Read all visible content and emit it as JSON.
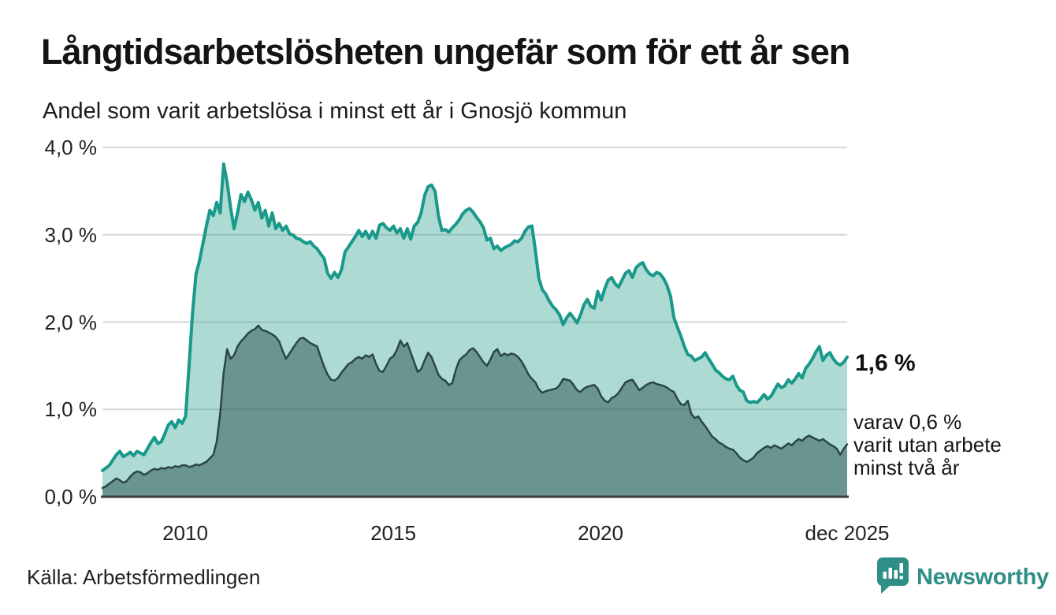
{
  "header": {
    "title": "Långtidsarbetslösheten ungefär som för ett år sen",
    "subtitle": "Andel som varit arbetslösa i minst ett år i Gnosjö kommun"
  },
  "chart_data": {
    "type": "area",
    "title": "Långtidsarbetslösheten ungefär som för ett år sen",
    "subtitle": "Andel som varit arbetslösa i minst ett år i Gnosjö kommun",
    "unit": "%",
    "x_description": "monthly values, Jan 2008 - Dec 2025",
    "ylim": [
      0,
      4.0
    ],
    "grid": "horizontal",
    "y_ticks": [
      "4,0 %",
      "3,0 %",
      "2,0 %",
      "1,0 %",
      "0,0 %"
    ],
    "x_ticks": [
      {
        "label": "2010"
      },
      {
        "label": "2015"
      },
      {
        "label": "2020"
      },
      {
        "label": "dec 2025"
      }
    ],
    "colors": {
      "total_line": "#18998a",
      "total_fill": "rgba(42,157,143,0.38)",
      "twoyear_line": "#2b4549",
      "twoyear_fill": "rgba(23,62,64,0.45)",
      "gridline": "#d7d7d7",
      "baseline": "#3c3c3c"
    },
    "series": [
      {
        "name": "Arbetslösa minst ett år",
        "latest_label": "1,6 %",
        "values": [
          0.3,
          0.33,
          0.36,
          0.42,
          0.48,
          0.52,
          0.46,
          0.48,
          0.51,
          0.47,
          0.52,
          0.5,
          0.48,
          0.55,
          0.62,
          0.68,
          0.61,
          0.63,
          0.72,
          0.82,
          0.86,
          0.79,
          0.88,
          0.84,
          0.92,
          1.5,
          2.1,
          2.55,
          2.7,
          2.9,
          3.1,
          3.28,
          3.22,
          3.37,
          3.25,
          3.81,
          3.6,
          3.31,
          3.07,
          3.25,
          3.46,
          3.38,
          3.49,
          3.4,
          3.28,
          3.37,
          3.19,
          3.28,
          3.1,
          3.25,
          3.07,
          3.13,
          3.05,
          3.1,
          3.01,
          3.0,
          2.96,
          2.95,
          2.92,
          2.9,
          2.92,
          2.87,
          2.84,
          2.78,
          2.73,
          2.56,
          2.5,
          2.57,
          2.51,
          2.6,
          2.8,
          2.86,
          2.92,
          2.98,
          3.05,
          2.98,
          3.04,
          2.96,
          3.04,
          2.96,
          3.11,
          3.13,
          3.08,
          3.05,
          3.1,
          3.02,
          3.07,
          2.96,
          3.07,
          2.95,
          3.1,
          3.14,
          3.25,
          3.45,
          3.55,
          3.57,
          3.5,
          3.22,
          3.05,
          3.06,
          3.03,
          3.08,
          3.12,
          3.17,
          3.24,
          3.28,
          3.3,
          3.26,
          3.2,
          3.15,
          3.08,
          2.94,
          2.96,
          2.84,
          2.87,
          2.82,
          2.85,
          2.87,
          2.89,
          2.93,
          2.92,
          2.96,
          3.04,
          3.09,
          3.1,
          2.82,
          2.5,
          2.37,
          2.32,
          2.24,
          2.18,
          2.14,
          2.08,
          1.97,
          2.05,
          2.1,
          2.05,
          1.99,
          2.08,
          2.2,
          2.26,
          2.18,
          2.16,
          2.35,
          2.25,
          2.38,
          2.48,
          2.51,
          2.44,
          2.4,
          2.48,
          2.56,
          2.59,
          2.51,
          2.62,
          2.66,
          2.68,
          2.6,
          2.55,
          2.53,
          2.57,
          2.55,
          2.5,
          2.42,
          2.3,
          2.05,
          1.94,
          1.84,
          1.72,
          1.63,
          1.61,
          1.56,
          1.58,
          1.6,
          1.65,
          1.58,
          1.52,
          1.45,
          1.42,
          1.38,
          1.35,
          1.34,
          1.38,
          1.28,
          1.22,
          1.2,
          1.1,
          1.08,
          1.09,
          1.08,
          1.12,
          1.17,
          1.12,
          1.15,
          1.22,
          1.29,
          1.25,
          1.27,
          1.34,
          1.3,
          1.35,
          1.41,
          1.36,
          1.47,
          1.52,
          1.58,
          1.66,
          1.72,
          1.56,
          1.62,
          1.65,
          1.58,
          1.53,
          1.51,
          1.54,
          1.6
        ]
      },
      {
        "name": "varav utan arbete minst två år",
        "latest_label": "0,6 %",
        "values": [
          0.1,
          0.12,
          0.15,
          0.18,
          0.21,
          0.19,
          0.16,
          0.18,
          0.23,
          0.27,
          0.29,
          0.28,
          0.25,
          0.27,
          0.3,
          0.32,
          0.31,
          0.33,
          0.32,
          0.34,
          0.33,
          0.35,
          0.34,
          0.36,
          0.36,
          0.34,
          0.35,
          0.37,
          0.36,
          0.38,
          0.4,
          0.44,
          0.48,
          0.63,
          0.95,
          1.42,
          1.69,
          1.58,
          1.62,
          1.72,
          1.78,
          1.82,
          1.87,
          1.9,
          1.92,
          1.96,
          1.91,
          1.9,
          1.88,
          1.86,
          1.83,
          1.78,
          1.67,
          1.58,
          1.64,
          1.7,
          1.76,
          1.81,
          1.82,
          1.79,
          1.76,
          1.74,
          1.72,
          1.6,
          1.49,
          1.4,
          1.34,
          1.33,
          1.36,
          1.42,
          1.47,
          1.52,
          1.54,
          1.58,
          1.6,
          1.58,
          1.62,
          1.6,
          1.63,
          1.52,
          1.44,
          1.43,
          1.5,
          1.58,
          1.61,
          1.68,
          1.79,
          1.72,
          1.76,
          1.65,
          1.54,
          1.43,
          1.46,
          1.56,
          1.65,
          1.6,
          1.5,
          1.4,
          1.35,
          1.33,
          1.28,
          1.3,
          1.45,
          1.56,
          1.6,
          1.63,
          1.68,
          1.7,
          1.66,
          1.6,
          1.54,
          1.5,
          1.57,
          1.66,
          1.69,
          1.61,
          1.64,
          1.62,
          1.64,
          1.63,
          1.6,
          1.55,
          1.48,
          1.4,
          1.35,
          1.31,
          1.23,
          1.19,
          1.21,
          1.22,
          1.23,
          1.24,
          1.28,
          1.35,
          1.34,
          1.33,
          1.28,
          1.22,
          1.2,
          1.24,
          1.26,
          1.27,
          1.28,
          1.24,
          1.15,
          1.1,
          1.08,
          1.13,
          1.15,
          1.19,
          1.25,
          1.31,
          1.33,
          1.34,
          1.28,
          1.22,
          1.25,
          1.28,
          1.3,
          1.31,
          1.29,
          1.28,
          1.27,
          1.25,
          1.22,
          1.2,
          1.12,
          1.06,
          1.05,
          1.1,
          0.95,
          0.9,
          0.92,
          0.86,
          0.81,
          0.75,
          0.69,
          0.66,
          0.62,
          0.6,
          0.57,
          0.55,
          0.54,
          0.5,
          0.45,
          0.42,
          0.4,
          0.42,
          0.45,
          0.5,
          0.53,
          0.56,
          0.58,
          0.56,
          0.59,
          0.57,
          0.55,
          0.58,
          0.61,
          0.59,
          0.63,
          0.66,
          0.64,
          0.68,
          0.7,
          0.68,
          0.66,
          0.64,
          0.66,
          0.63,
          0.6,
          0.58,
          0.55,
          0.48,
          0.55,
          0.6
        ]
      }
    ],
    "annotations": {
      "latest_total": "1,6 %",
      "latest_two_year_line1": "varav 0,6 %",
      "latest_two_year_line2": "varit utan arbete",
      "latest_two_year_line3": "minst två år"
    }
  },
  "footer": {
    "source": "Källa: Arbetsförmedlingen",
    "logo_text": "Newsworthy",
    "logo_color": "#2f8e86"
  }
}
